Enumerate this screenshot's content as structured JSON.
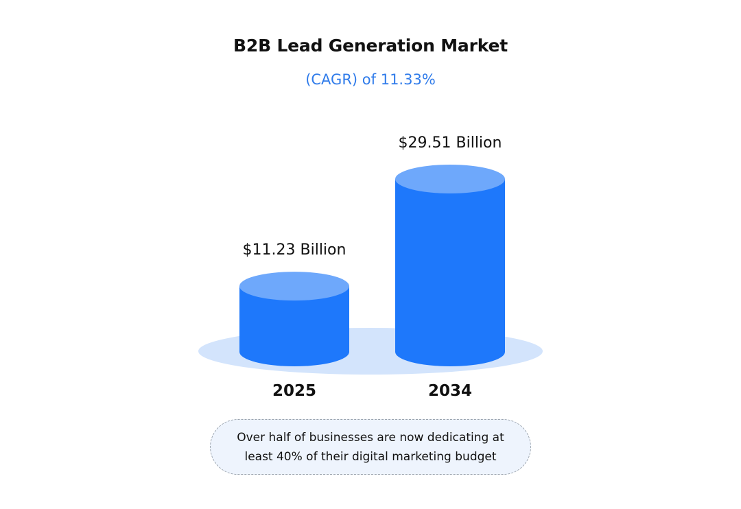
{
  "chart_data": {
    "type": "bar",
    "style": "3d-cylinder",
    "title": "B2B Lead Generation Market",
    "subtitle": "(CAGR) of 11.33%",
    "categories": [
      "2025",
      "2034"
    ],
    "values": [
      11.23,
      29.51
    ],
    "value_labels": [
      "$11.23 Billion",
      "$29.51 Billion"
    ],
    "unit": "Billion USD",
    "xlabel": "",
    "ylabel": "",
    "ylim": [
      0,
      29.51
    ],
    "grid": false,
    "legend": "none",
    "colors": {
      "body": "#1e78fb",
      "top": "#6ea8fb",
      "base": "#d3e4fc",
      "subtitle": "#2f7bea"
    }
  },
  "note": {
    "text": "Over half of businesses are now dedicating at least 40% of their digital marketing budget"
  }
}
